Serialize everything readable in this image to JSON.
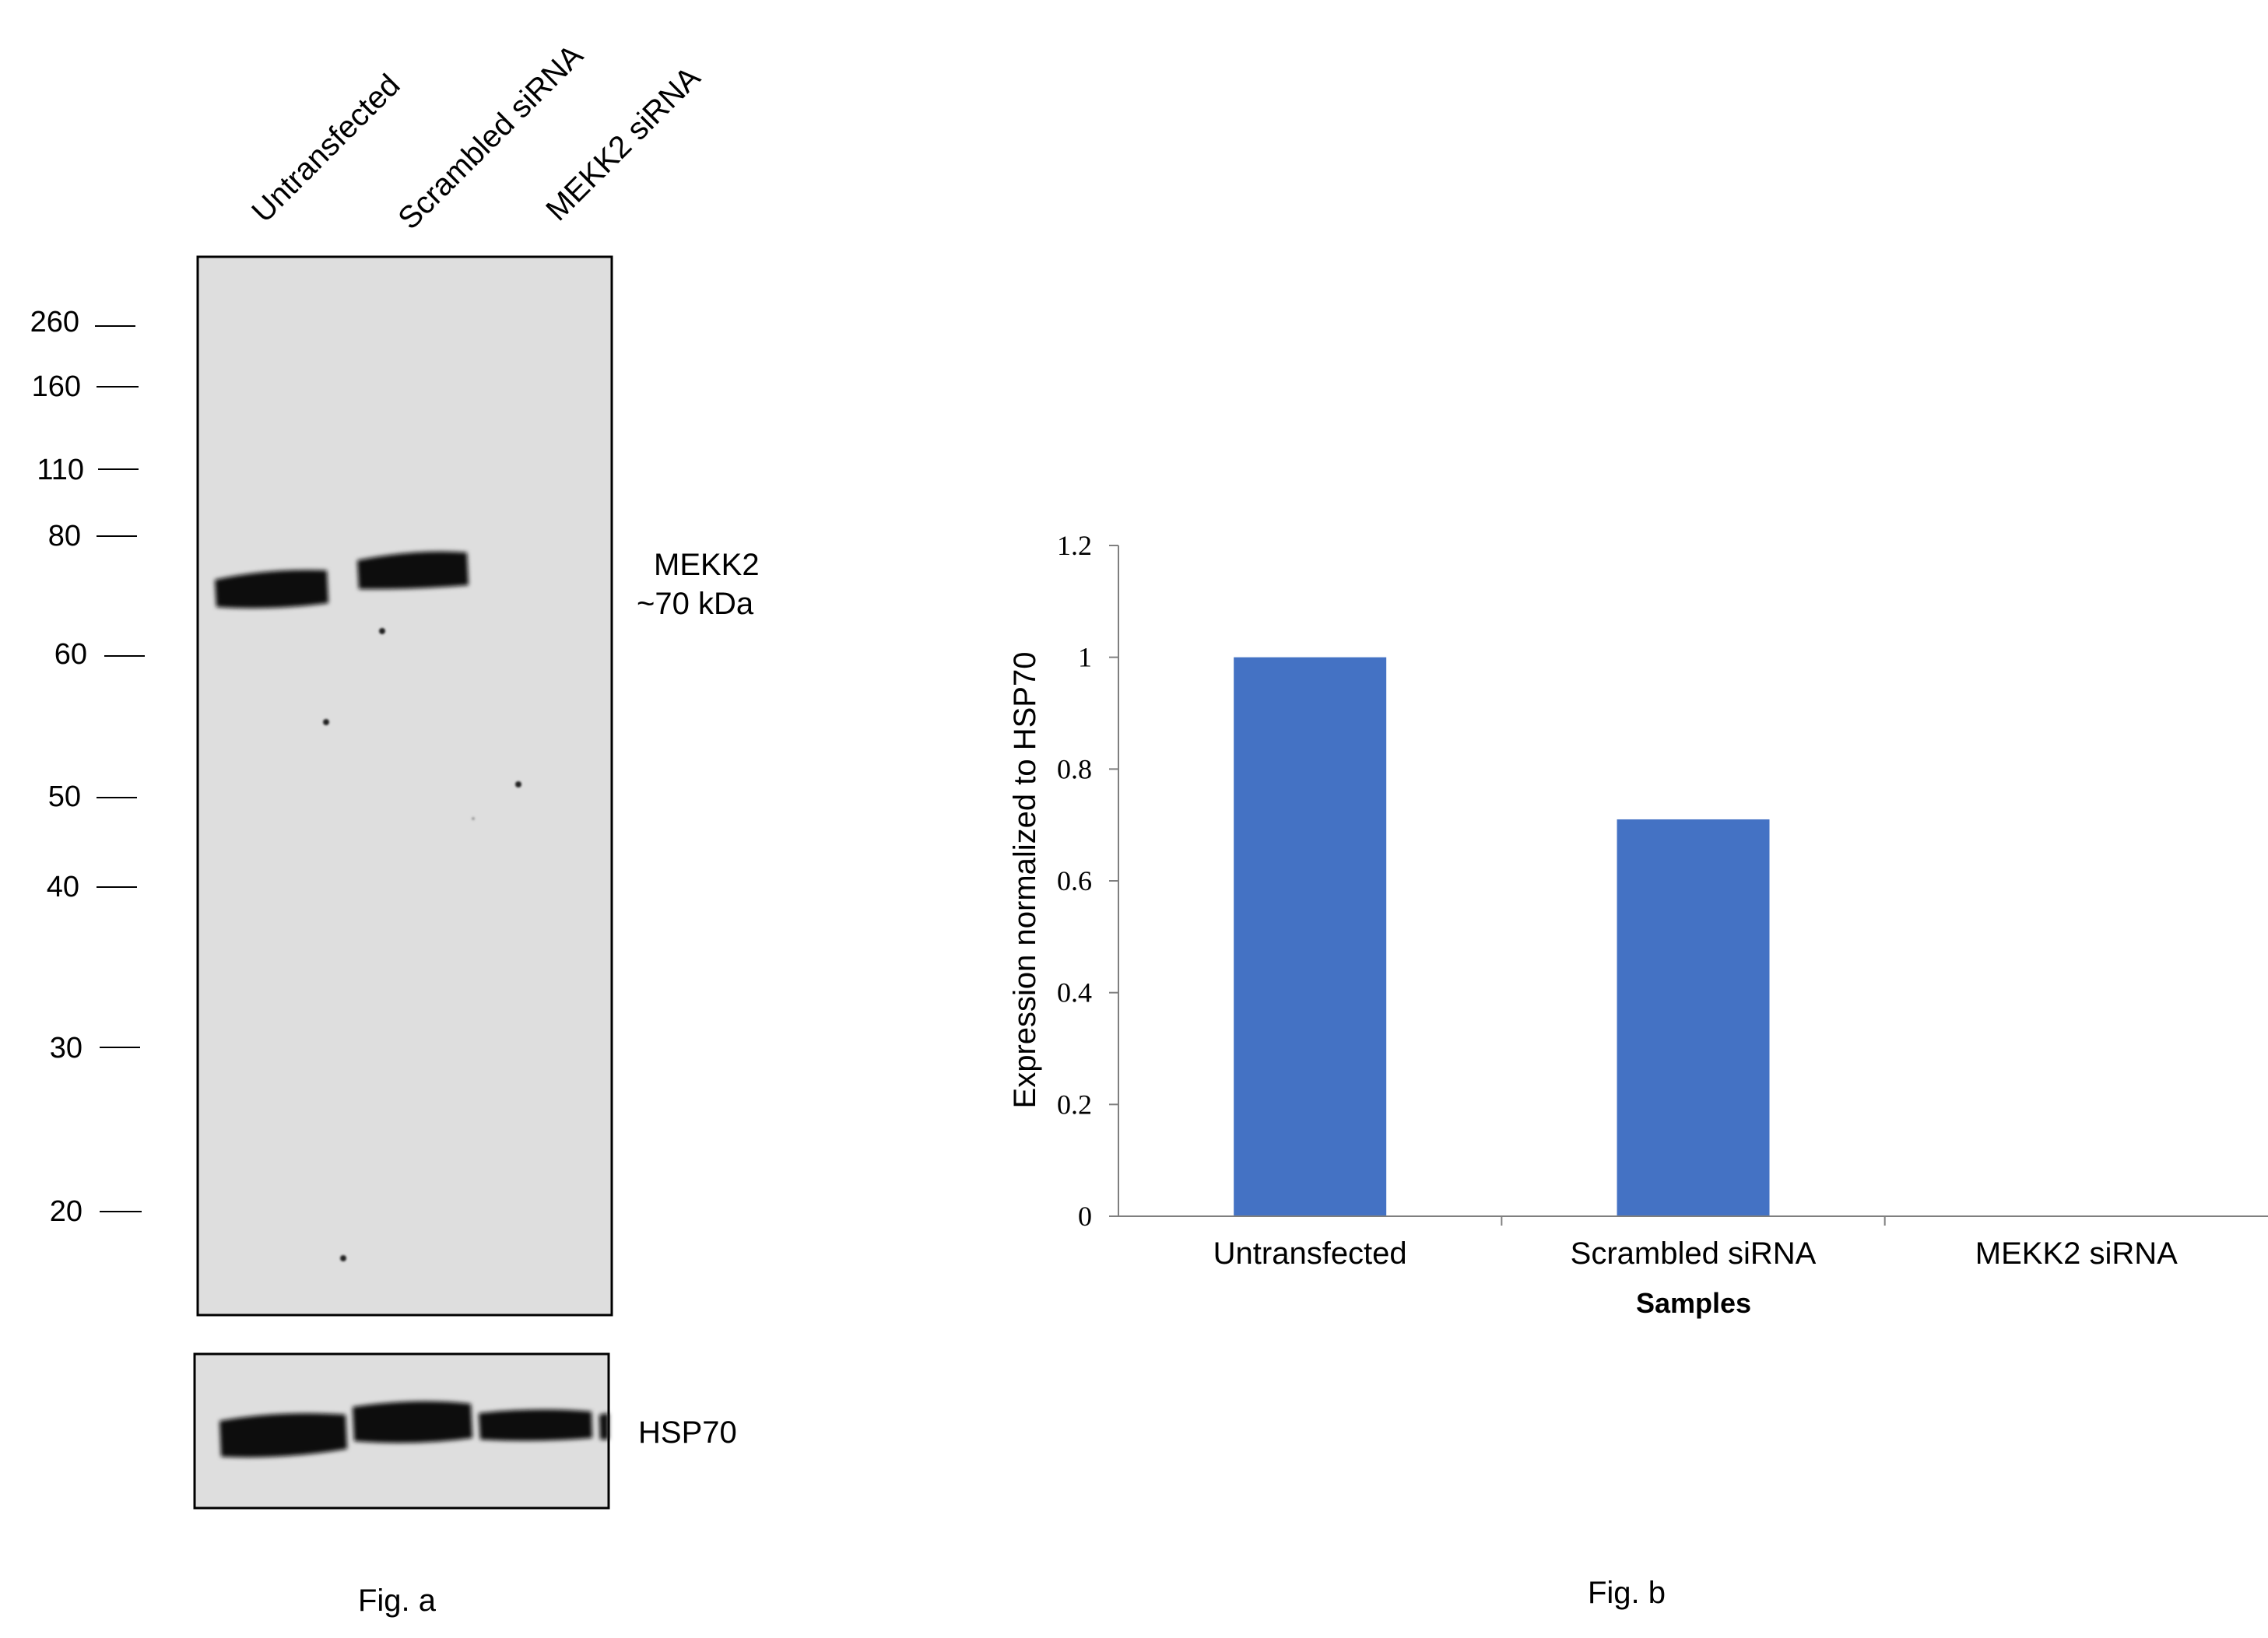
{
  "western_blot": {
    "lanes": [
      "Untransfected",
      "Scrambled siRNA",
      "MEKK2 siRNA"
    ],
    "mw_markers": [
      "260",
      "160",
      "110",
      "80",
      "60",
      "50",
      "40",
      "30",
      "20"
    ],
    "target_label": "MEKK2",
    "target_size": "~70 kDa",
    "loading_control": "HSP70",
    "caption": "Fig. a",
    "band_color": "#0a0a0a",
    "membrane_color": "#dedede"
  },
  "chart_data": {
    "type": "bar",
    "categories": [
      "Untransfected",
      "Scrambled siRNA",
      "MEKK2 siRNA"
    ],
    "values": [
      1.0,
      0.71,
      0.0
    ],
    "ylim": [
      0,
      1.2
    ],
    "yticks": [
      "0",
      "0.2",
      "0.4",
      "0.6",
      "0.8",
      "1",
      "1.2"
    ],
    "ylabel": "Expression  normalized to HSP70",
    "xlabel": "Samples",
    "caption": "Fig. b",
    "grid": false,
    "legend": "none",
    "bar_color": "#4472c4",
    "axis_color": "#7f7f7f"
  }
}
